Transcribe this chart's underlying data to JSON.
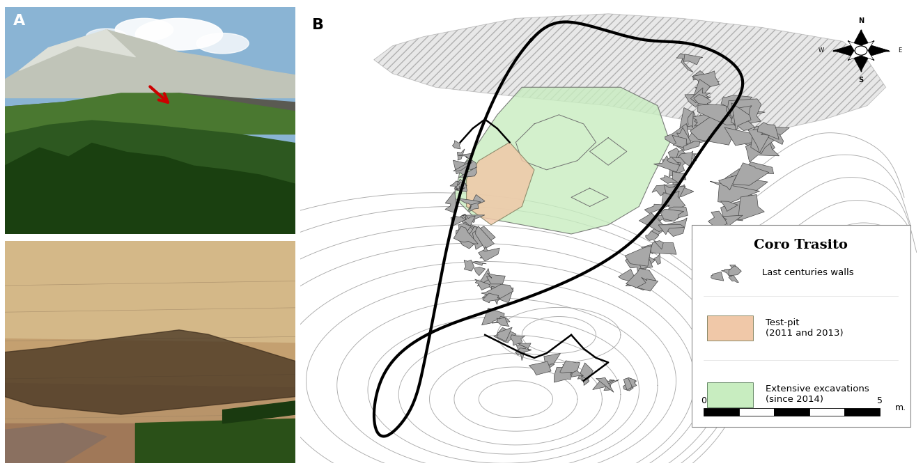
{
  "fig_width": 13.25,
  "fig_height": 6.72,
  "bg_color": "#ffffff",
  "panel_a_label": "A",
  "panel_b_label": "B",
  "arrow_color": "#cc0000",
  "contour_color": "#aaaaaa",
  "thick_line_color": "#000000",
  "fill_green": "#c8edc0",
  "fill_peach": "#f0c8a8",
  "fill_gray": "#a8a8a8",
  "legend_title": "Coro Trasito",
  "legend_item1": "Last centuries walls",
  "legend_item2": "Test-pit\n(2011 and 2013)",
  "legend_item3": "Extensive excavations\n(since 2014)",
  "scale_label_0": "0",
  "scale_label_5": "5",
  "scale_unit": "m."
}
